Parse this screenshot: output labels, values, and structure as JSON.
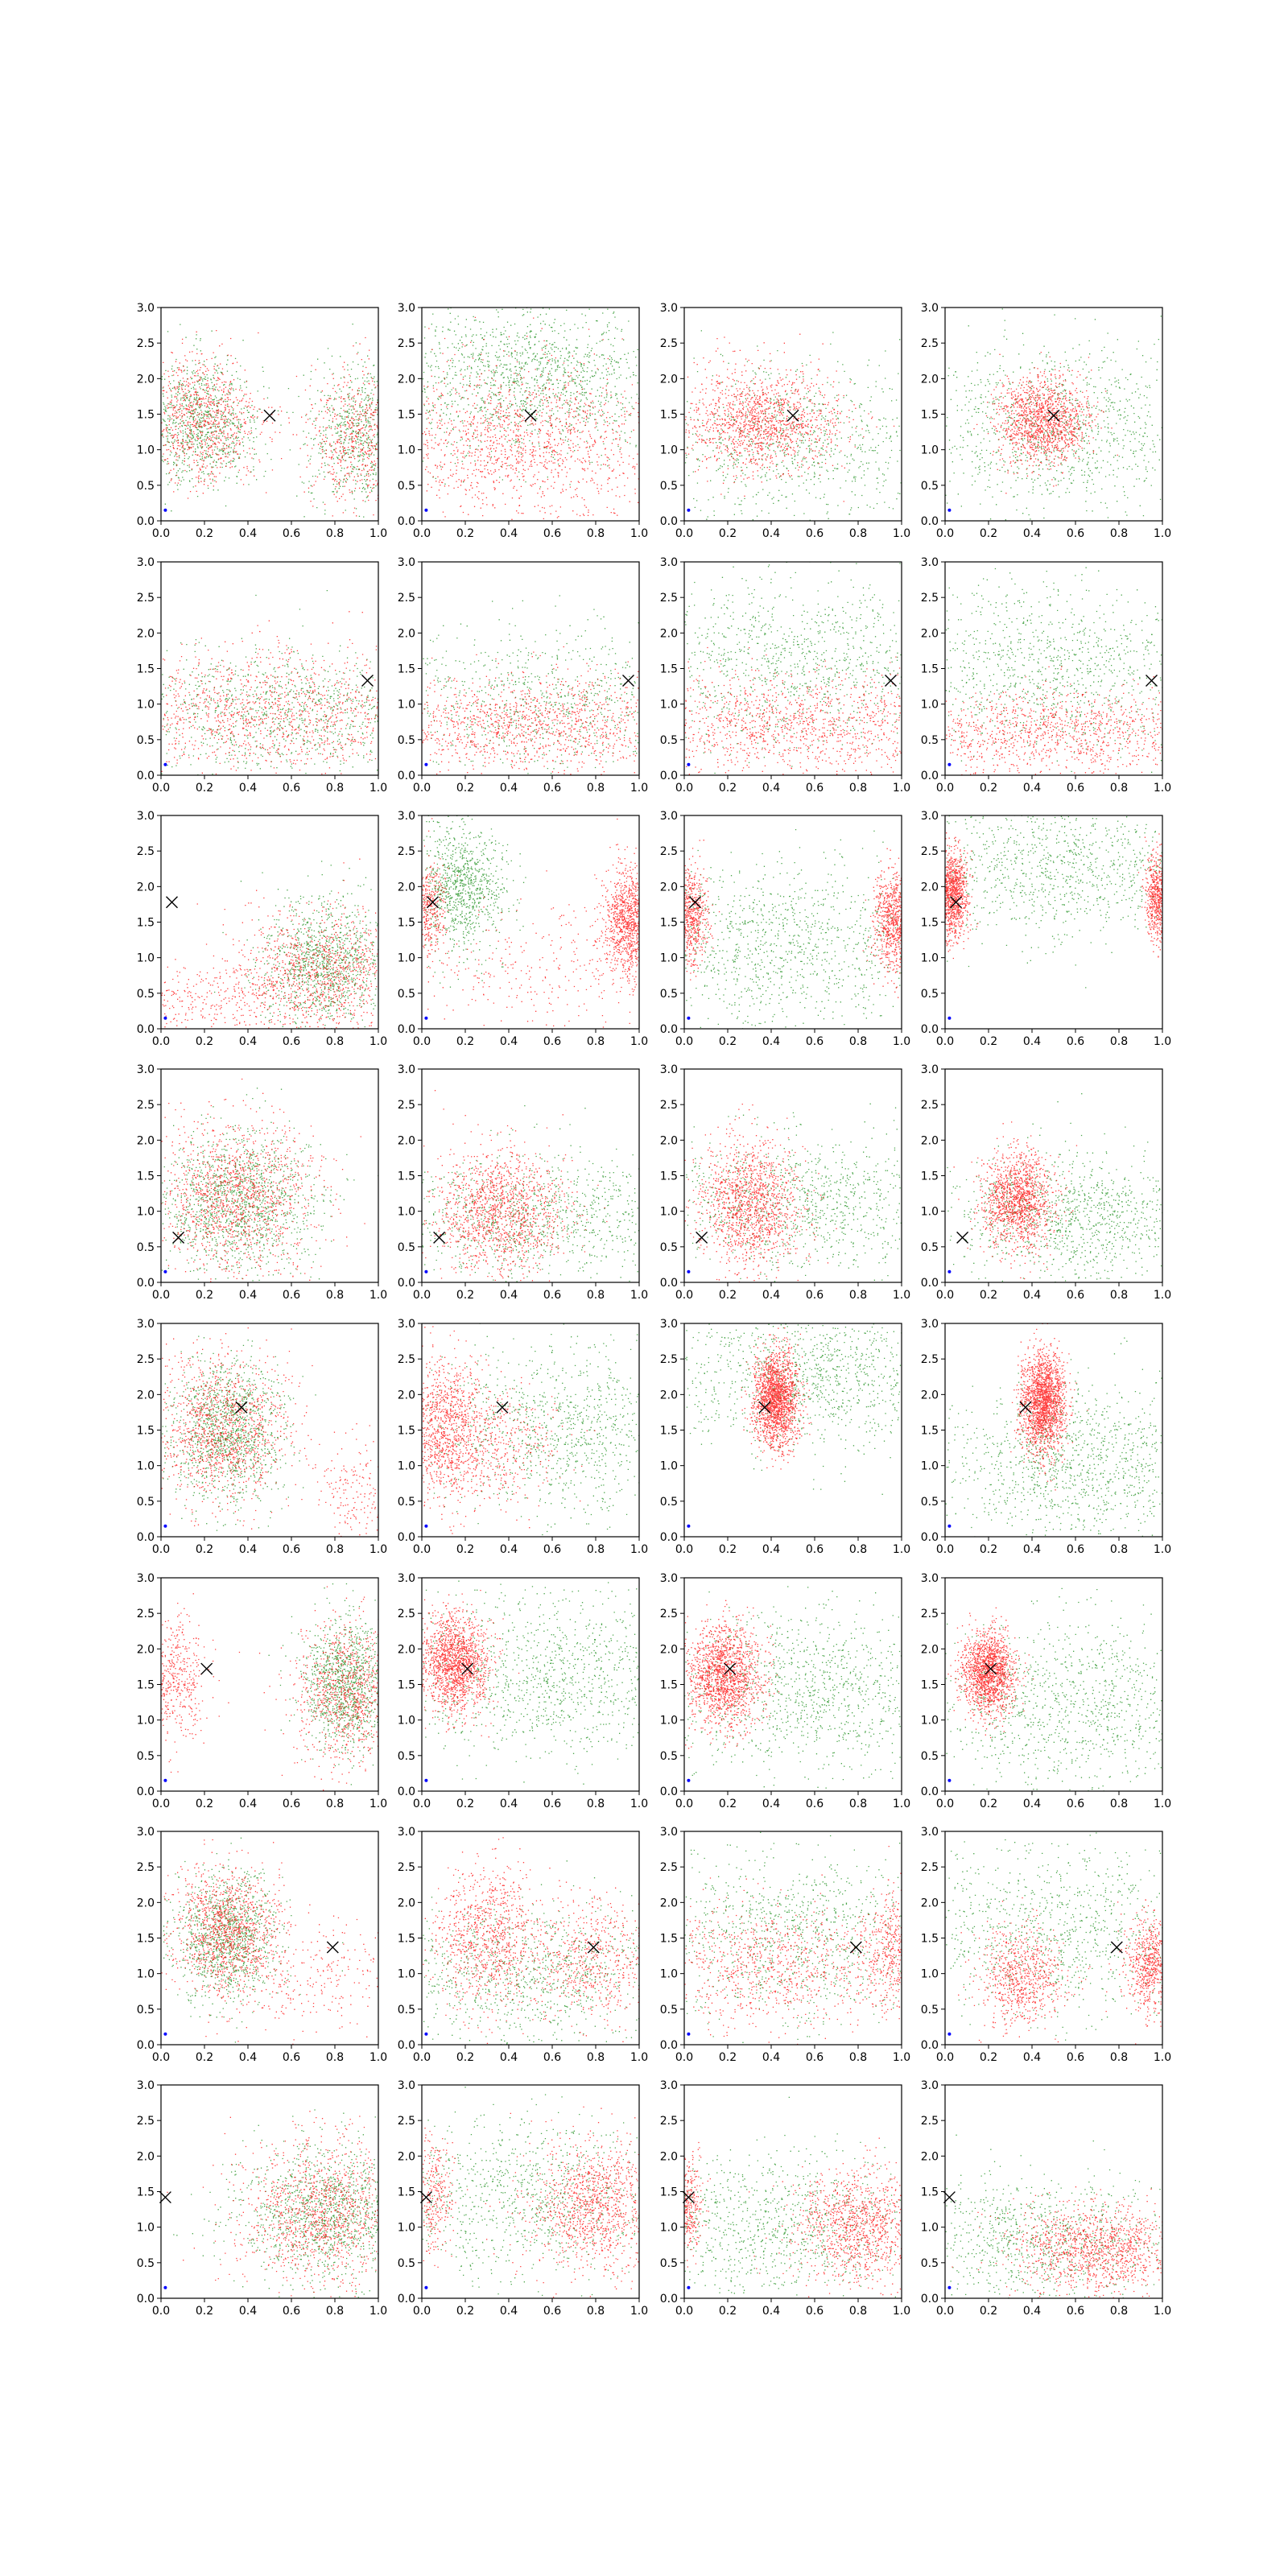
{
  "chart_data": {
    "type": "scatter",
    "layout": {
      "rows": 8,
      "cols": 4
    },
    "xlim": [
      0.0,
      1.0
    ],
    "ylim": [
      0.0,
      3.0
    ],
    "xticks": [
      "0.0",
      "0.2",
      "0.4",
      "0.6",
      "0.8",
      "1.0"
    ],
    "yticks": [
      "0.0",
      "0.5",
      "1.0",
      "1.5",
      "2.0",
      "2.5",
      "3.0"
    ],
    "title": "",
    "xlabel": "",
    "ylabel": "",
    "grid": false,
    "colors": {
      "red": "#ff0000",
      "green": "#008000",
      "marker": "#000000",
      "blue": "#0000ff"
    },
    "rows": [
      {
        "marker": [
          0.5,
          1.48
        ],
        "blue": [
          0.02,
          0.15
        ],
        "panels": [
          {
            "red": [
              {
                "cx": 0.18,
                "cy": 1.4,
                "sx": 0.14,
                "sy": 0.45,
                "n": 900
              },
              {
                "cx": 0.92,
                "cy": 1.2,
                "sx": 0.12,
                "sy": 0.5,
                "n": 700
              }
            ],
            "green": [
              {
                "cx": 0.18,
                "cy": 1.4,
                "sx": 0.14,
                "sy": 0.45,
                "n": 900
              },
              {
                "cx": 0.92,
                "cy": 1.2,
                "sx": 0.12,
                "sy": 0.5,
                "n": 700
              }
            ]
          },
          {
            "red": [
              {
                "cx": 0.45,
                "cy": 1.1,
                "sx": 0.35,
                "sy": 0.55,
                "n": 1500
              }
            ],
            "green": [
              {
                "cx": 0.5,
                "cy": 2.0,
                "sx": 0.35,
                "sy": 0.55,
                "n": 1500
              }
            ]
          },
          {
            "red": [
              {
                "cx": 0.35,
                "cy": 1.4,
                "sx": 0.18,
                "sy": 0.35,
                "n": 1300
              }
            ],
            "green": [
              {
                "cx": 0.55,
                "cy": 1.1,
                "sx": 0.35,
                "sy": 0.55,
                "n": 900
              }
            ]
          },
          {
            "red": [
              {
                "cx": 0.45,
                "cy": 1.4,
                "sx": 0.1,
                "sy": 0.3,
                "n": 1300
              }
            ],
            "green": [
              {
                "cx": 0.5,
                "cy": 1.3,
                "sx": 0.35,
                "sy": 0.6,
                "n": 1100
              }
            ]
          }
        ]
      },
      {
        "marker": [
          0.95,
          1.33
        ],
        "blue": [
          0.02,
          0.15
        ],
        "panels": [
          {
            "red": [
              {
                "cx": 0.5,
                "cy": 0.85,
                "sx": 0.4,
                "sy": 0.45,
                "n": 1300
              }
            ],
            "green": [
              {
                "cx": 0.55,
                "cy": 0.9,
                "sx": 0.4,
                "sy": 0.45,
                "n": 1100
              }
            ]
          },
          {
            "red": [
              {
                "cx": 0.5,
                "cy": 0.7,
                "sx": 0.4,
                "sy": 0.35,
                "n": 1300
              }
            ],
            "green": [
              {
                "cx": 0.6,
                "cy": 1.0,
                "sx": 0.4,
                "sy": 0.5,
                "n": 900
              }
            ]
          },
          {
            "red": [
              {
                "cx": 0.5,
                "cy": 0.7,
                "sx": 0.4,
                "sy": 0.35,
                "n": 1300
              }
            ],
            "green": [
              {
                "cx": 0.5,
                "cy": 1.6,
                "sx": 0.4,
                "sy": 0.6,
                "n": 1100
              }
            ]
          },
          {
            "red": [
              {
                "cx": 0.5,
                "cy": 0.6,
                "sx": 0.4,
                "sy": 0.3,
                "n": 1200
              }
            ],
            "green": [
              {
                "cx": 0.5,
                "cy": 1.5,
                "sx": 0.4,
                "sy": 0.6,
                "n": 1100
              }
            ]
          }
        ]
      },
      {
        "marker": [
          0.05,
          1.78
        ],
        "blue": [
          0.02,
          0.15
        ],
        "panels": [
          {
            "red": [
              {
                "cx": 0.75,
                "cy": 0.8,
                "sx": 0.2,
                "sy": 0.45,
                "n": 1100
              },
              {
                "cx": 0.2,
                "cy": 0.4,
                "sx": 0.2,
                "sy": 0.25,
                "n": 300
              }
            ],
            "green": [
              {
                "cx": 0.75,
                "cy": 0.9,
                "sx": 0.15,
                "sy": 0.45,
                "n": 1100
              }
            ]
          },
          {
            "red": [
              {
                "cx": 0.95,
                "cy": 1.5,
                "sx": 0.06,
                "sy": 0.4,
                "n": 1100
              },
              {
                "cx": 0.03,
                "cy": 1.7,
                "sx": 0.04,
                "sy": 0.35,
                "n": 400
              },
              {
                "cx": 0.5,
                "cy": 0.8,
                "sx": 0.3,
                "sy": 0.5,
                "n": 300
              }
            ],
            "green": [
              {
                "cx": 0.18,
                "cy": 2.0,
                "sx": 0.1,
                "sy": 0.45,
                "n": 900
              }
            ]
          },
          {
            "red": [
              {
                "cx": 0.97,
                "cy": 1.5,
                "sx": 0.05,
                "sy": 0.35,
                "n": 900
              },
              {
                "cx": 0.03,
                "cy": 1.6,
                "sx": 0.04,
                "sy": 0.35,
                "n": 600
              }
            ],
            "green": [
              {
                "cx": 0.45,
                "cy": 1.2,
                "sx": 0.35,
                "sy": 0.6,
                "n": 1100
              }
            ]
          },
          {
            "red": [
              {
                "cx": 0.03,
                "cy": 1.9,
                "sx": 0.035,
                "sy": 0.3,
                "n": 1100
              },
              {
                "cx": 0.98,
                "cy": 1.85,
                "sx": 0.03,
                "sy": 0.3,
                "n": 700
              }
            ],
            "green": [
              {
                "cx": 0.5,
                "cy": 2.3,
                "sx": 0.4,
                "sy": 0.5,
                "n": 1100
              }
            ]
          }
        ]
      },
      {
        "marker": [
          0.08,
          0.63
        ],
        "blue": [
          0.02,
          0.15
        ],
        "panels": [
          {
            "red": [
              {
                "cx": 0.35,
                "cy": 1.2,
                "sx": 0.18,
                "sy": 0.55,
                "n": 1300
              }
            ],
            "green": [
              {
                "cx": 0.35,
                "cy": 1.1,
                "sx": 0.18,
                "sy": 0.5,
                "n": 1300
              }
            ]
          },
          {
            "red": [
              {
                "cx": 0.35,
                "cy": 1.0,
                "sx": 0.15,
                "sy": 0.45,
                "n": 1300
              }
            ],
            "green": [
              {
                "cx": 0.55,
                "cy": 0.9,
                "sx": 0.35,
                "sy": 0.45,
                "n": 1000
              }
            ]
          },
          {
            "red": [
              {
                "cx": 0.3,
                "cy": 1.1,
                "sx": 0.12,
                "sy": 0.45,
                "n": 1300
              }
            ],
            "green": [
              {
                "cx": 0.55,
                "cy": 1.1,
                "sx": 0.35,
                "sy": 0.5,
                "n": 1000
              }
            ]
          },
          {
            "red": [
              {
                "cx": 0.33,
                "cy": 1.15,
                "sx": 0.08,
                "sy": 0.35,
                "n": 1300
              }
            ],
            "green": [
              {
                "cx": 0.6,
                "cy": 0.9,
                "sx": 0.3,
                "sy": 0.45,
                "n": 1100
              }
            ]
          }
        ]
      },
      {
        "marker": [
          0.37,
          1.82
        ],
        "blue": [
          0.02,
          0.15
        ],
        "panels": [
          {
            "red": [
              {
                "cx": 0.28,
                "cy": 1.5,
                "sx": 0.15,
                "sy": 0.5,
                "n": 1200
              },
              {
                "cx": 0.9,
                "cy": 0.6,
                "sx": 0.1,
                "sy": 0.4,
                "n": 200
              }
            ],
            "green": [
              {
                "cx": 0.3,
                "cy": 1.5,
                "sx": 0.13,
                "sy": 0.5,
                "n": 1200
              }
            ]
          },
          {
            "red": [
              {
                "cx": 0.1,
                "cy": 1.5,
                "sx": 0.1,
                "sy": 0.5,
                "n": 1100
              },
              {
                "cx": 0.35,
                "cy": 1.3,
                "sx": 0.15,
                "sy": 0.4,
                "n": 400
              }
            ],
            "green": [
              {
                "cx": 0.65,
                "cy": 1.5,
                "sx": 0.3,
                "sy": 0.6,
                "n": 1000
              }
            ]
          },
          {
            "red": [
              {
                "cx": 0.42,
                "cy": 1.95,
                "sx": 0.05,
                "sy": 0.35,
                "n": 1800
              }
            ],
            "green": [
              {
                "cx": 0.6,
                "cy": 2.3,
                "sx": 0.35,
                "sy": 0.55,
                "n": 1200
              }
            ]
          },
          {
            "red": [
              {
                "cx": 0.45,
                "cy": 1.9,
                "sx": 0.05,
                "sy": 0.35,
                "n": 1800
              }
            ],
            "green": [
              {
                "cx": 0.6,
                "cy": 1.0,
                "sx": 0.3,
                "sy": 0.55,
                "n": 1200
              }
            ]
          }
        ]
      },
      {
        "marker": [
          0.21,
          1.72
        ],
        "blue": [
          0.02,
          0.15
        ],
        "panels": [
          {
            "red": [
              {
                "cx": 0.85,
                "cy": 1.4,
                "sx": 0.12,
                "sy": 0.5,
                "n": 900
              },
              {
                "cx": 0.05,
                "cy": 1.6,
                "sx": 0.08,
                "sy": 0.45,
                "n": 500
              }
            ],
            "green": [
              {
                "cx": 0.85,
                "cy": 1.5,
                "sx": 0.1,
                "sy": 0.45,
                "n": 1100
              }
            ]
          },
          {
            "red": [
              {
                "cx": 0.15,
                "cy": 1.8,
                "sx": 0.08,
                "sy": 0.35,
                "n": 1500
              }
            ],
            "green": [
              {
                "cx": 0.6,
                "cy": 1.6,
                "sx": 0.35,
                "sy": 0.6,
                "n": 1100
              }
            ]
          },
          {
            "red": [
              {
                "cx": 0.18,
                "cy": 1.6,
                "sx": 0.09,
                "sy": 0.35,
                "n": 1500
              }
            ],
            "green": [
              {
                "cx": 0.6,
                "cy": 1.4,
                "sx": 0.35,
                "sy": 0.6,
                "n": 1100
              }
            ]
          },
          {
            "red": [
              {
                "cx": 0.2,
                "cy": 1.65,
                "sx": 0.06,
                "sy": 0.3,
                "n": 1500
              }
            ],
            "green": [
              {
                "cx": 0.6,
                "cy": 1.2,
                "sx": 0.35,
                "sy": 0.6,
                "n": 1100
              }
            ]
          }
        ]
      },
      {
        "marker": [
          0.79,
          1.37
        ],
        "blue": [
          0.02,
          0.15
        ],
        "panels": [
          {
            "red": [
              {
                "cx": 0.3,
                "cy": 1.6,
                "sx": 0.12,
                "sy": 0.45,
                "n": 1100
              },
              {
                "cx": 0.7,
                "cy": 1.0,
                "sx": 0.25,
                "sy": 0.4,
                "n": 300
              }
            ],
            "green": [
              {
                "cx": 0.3,
                "cy": 1.5,
                "sx": 0.12,
                "sy": 0.45,
                "n": 1100
              }
            ]
          },
          {
            "red": [
              {
                "cx": 0.3,
                "cy": 1.5,
                "sx": 0.12,
                "sy": 0.5,
                "n": 900
              },
              {
                "cx": 0.8,
                "cy": 1.2,
                "sx": 0.15,
                "sy": 0.45,
                "n": 600
              }
            ],
            "green": [
              {
                "cx": 0.5,
                "cy": 1.0,
                "sx": 0.35,
                "sy": 0.5,
                "n": 1000
              }
            ]
          },
          {
            "red": [
              {
                "cx": 0.4,
                "cy": 1.1,
                "sx": 0.3,
                "sy": 0.45,
                "n": 900
              },
              {
                "cx": 0.95,
                "cy": 1.3,
                "sx": 0.06,
                "sy": 0.4,
                "n": 400
              }
            ],
            "green": [
              {
                "cx": 0.5,
                "cy": 1.5,
                "sx": 0.35,
                "sy": 0.6,
                "n": 1000
              }
            ]
          },
          {
            "red": [
              {
                "cx": 0.35,
                "cy": 0.95,
                "sx": 0.1,
                "sy": 0.35,
                "n": 700
              },
              {
                "cx": 0.95,
                "cy": 1.1,
                "sx": 0.06,
                "sy": 0.35,
                "n": 700
              }
            ],
            "green": [
              {
                "cx": 0.5,
                "cy": 1.6,
                "sx": 0.35,
                "sy": 0.6,
                "n": 1000
              }
            ]
          }
        ]
      },
      {
        "marker": [
          0.02,
          1.42
        ],
        "blue": [
          0.02,
          0.15
        ],
        "panels": [
          {
            "red": [
              {
                "cx": 0.75,
                "cy": 1.2,
                "sx": 0.2,
                "sy": 0.5,
                "n": 1200
              }
            ],
            "green": [
              {
                "cx": 0.75,
                "cy": 1.2,
                "sx": 0.2,
                "sy": 0.5,
                "n": 1200
              }
            ]
          },
          {
            "red": [
              {
                "cx": 0.8,
                "cy": 1.3,
                "sx": 0.15,
                "sy": 0.45,
                "n": 1100
              },
              {
                "cx": 0.05,
                "cy": 1.5,
                "sx": 0.05,
                "sy": 0.4,
                "n": 300
              }
            ],
            "green": [
              {
                "cx": 0.45,
                "cy": 1.4,
                "sx": 0.35,
                "sy": 0.55,
                "n": 1000
              }
            ]
          },
          {
            "red": [
              {
                "cx": 0.8,
                "cy": 1.0,
                "sx": 0.15,
                "sy": 0.4,
                "n": 1100
              },
              {
                "cx": 0.02,
                "cy": 1.3,
                "sx": 0.03,
                "sy": 0.35,
                "n": 300
              }
            ],
            "green": [
              {
                "cx": 0.4,
                "cy": 1.0,
                "sx": 0.35,
                "sy": 0.5,
                "n": 1000
              }
            ]
          },
          {
            "red": [
              {
                "cx": 0.7,
                "cy": 0.7,
                "sx": 0.2,
                "sy": 0.3,
                "n": 1200
              }
            ],
            "green": [
              {
                "cx": 0.4,
                "cy": 0.8,
                "sx": 0.35,
                "sy": 0.45,
                "n": 1000
              }
            ]
          }
        ]
      }
    ]
  }
}
